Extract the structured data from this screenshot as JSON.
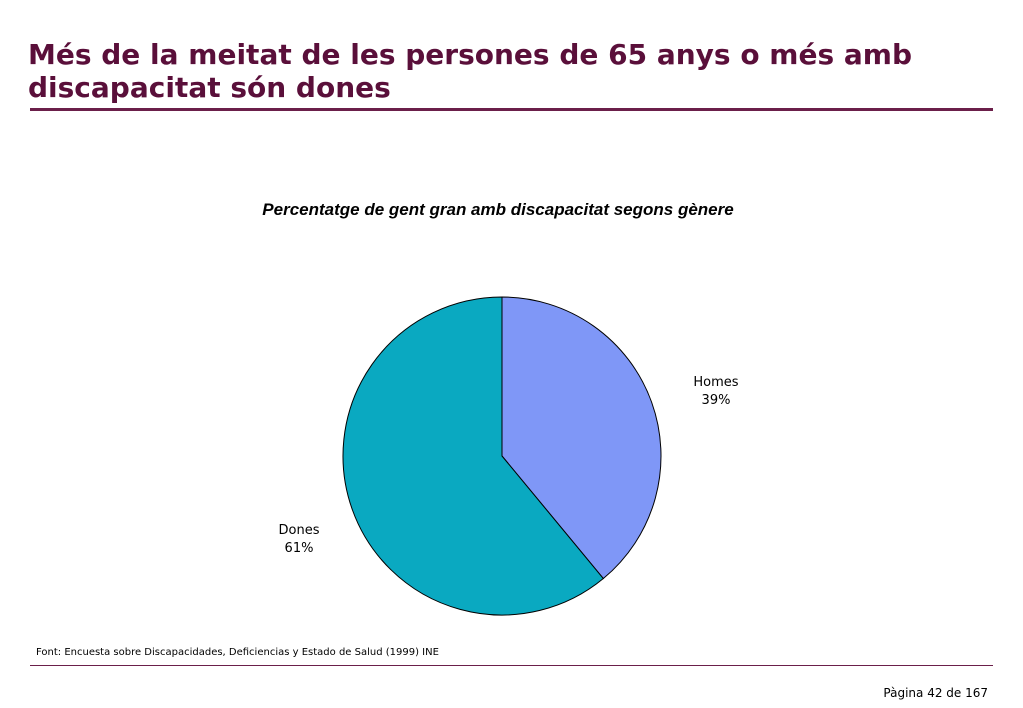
{
  "slide": {
    "title": "Més de la meitat de les persones de 65 anys o més amb discapacitat són dones",
    "source": "Font: Encuesta sobre Discapacidades, Deficiencias y Estado de Salud (1999) INE",
    "page": "Pàgina 42 de 167",
    "accent_color": "#5a0f3a"
  },
  "chart_data": {
    "type": "pie",
    "title": "Percentatge de gent gran amb discapacitat segons gènere",
    "slices": [
      {
        "label": "Homes",
        "value": 39,
        "value_label": "39%",
        "color": "#7f97f7"
      },
      {
        "label": "Dones",
        "value": 61,
        "value_label": "61%",
        "color": "#0aa9c1"
      }
    ],
    "start": "12 o'clock",
    "direction": "clockwise"
  }
}
